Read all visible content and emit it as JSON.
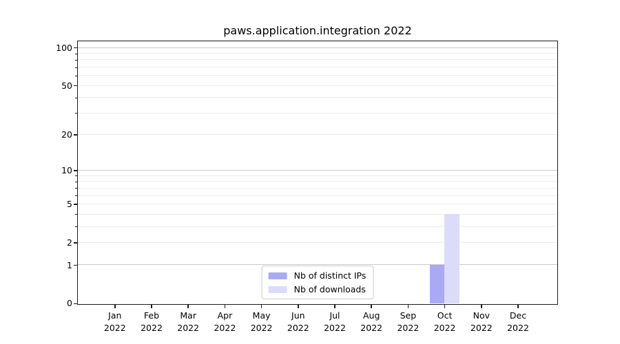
{
  "chart_data": {
    "type": "bar",
    "title": "paws.application.integration 2022",
    "categories": [
      "Jan",
      "Feb",
      "Mar",
      "Apr",
      "May",
      "Jun",
      "Jul",
      "Aug",
      "Sep",
      "Oct",
      "Nov",
      "Dec"
    ],
    "category_year": "2022",
    "series": [
      {
        "name": "Nb of distinct IPs",
        "color": "#a9a9f6",
        "values": [
          0,
          0,
          0,
          0,
          0,
          0,
          0,
          0,
          0,
          1,
          0,
          0
        ]
      },
      {
        "name": "Nb of downloads",
        "color": "#dcdcf8",
        "values": [
          0,
          0,
          0,
          0,
          0,
          0,
          0,
          0,
          0,
          4,
          0,
          0
        ]
      }
    ],
    "yscale": "log1p",
    "ylim": [
      0,
      112
    ],
    "yticks_labeled": [
      0,
      1,
      2,
      5,
      10,
      20,
      50,
      100
    ],
    "yticks_minor": [
      3,
      4,
      6,
      7,
      8,
      9,
      30,
      40,
      60,
      70,
      80,
      90
    ],
    "grid": "on",
    "legend_position": "lower center",
    "colors": {
      "grid_decade": "#c8c8c8",
      "grid_light": "#ececec",
      "spine": "#1a1a1a",
      "text": "#000000",
      "background": "#ffffff",
      "legend_border": "#cccccc"
    },
    "grid_decade_values": [
      1,
      10,
      100
    ]
  }
}
